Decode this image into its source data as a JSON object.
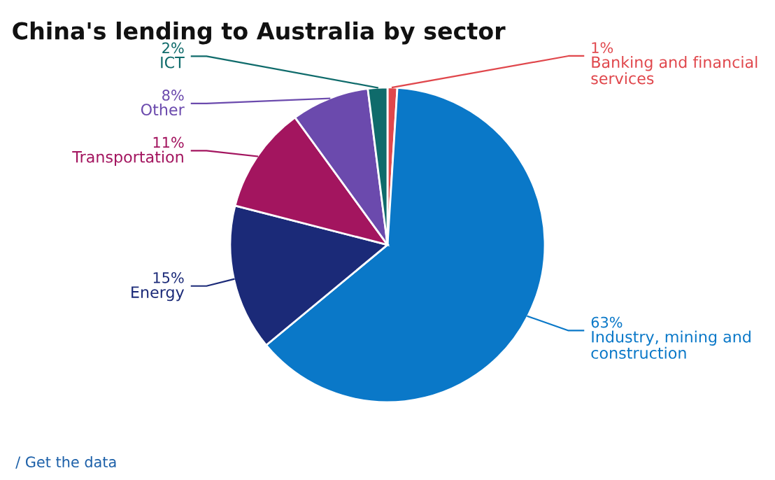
{
  "chart_data": {
    "type": "pie",
    "title": "China's lending to Australia by sector",
    "categories": [
      "Banking and financial\nservices",
      "Industry, mining and\nconstruction",
      "Energy",
      "Transportation",
      "Other",
      "ICT"
    ],
    "values": [
      1,
      63,
      15,
      11,
      8,
      2
    ],
    "colors": [
      "#e0474c",
      "#0a78c8",
      "#1b2a78",
      "#a3155f",
      "#6b4aad",
      "#0f6b6b"
    ],
    "value_labels": [
      "1%",
      "63%",
      "15%",
      "11%",
      "8%",
      "2%"
    ],
    "annotations": [
      "/ Get the data"
    ]
  }
}
